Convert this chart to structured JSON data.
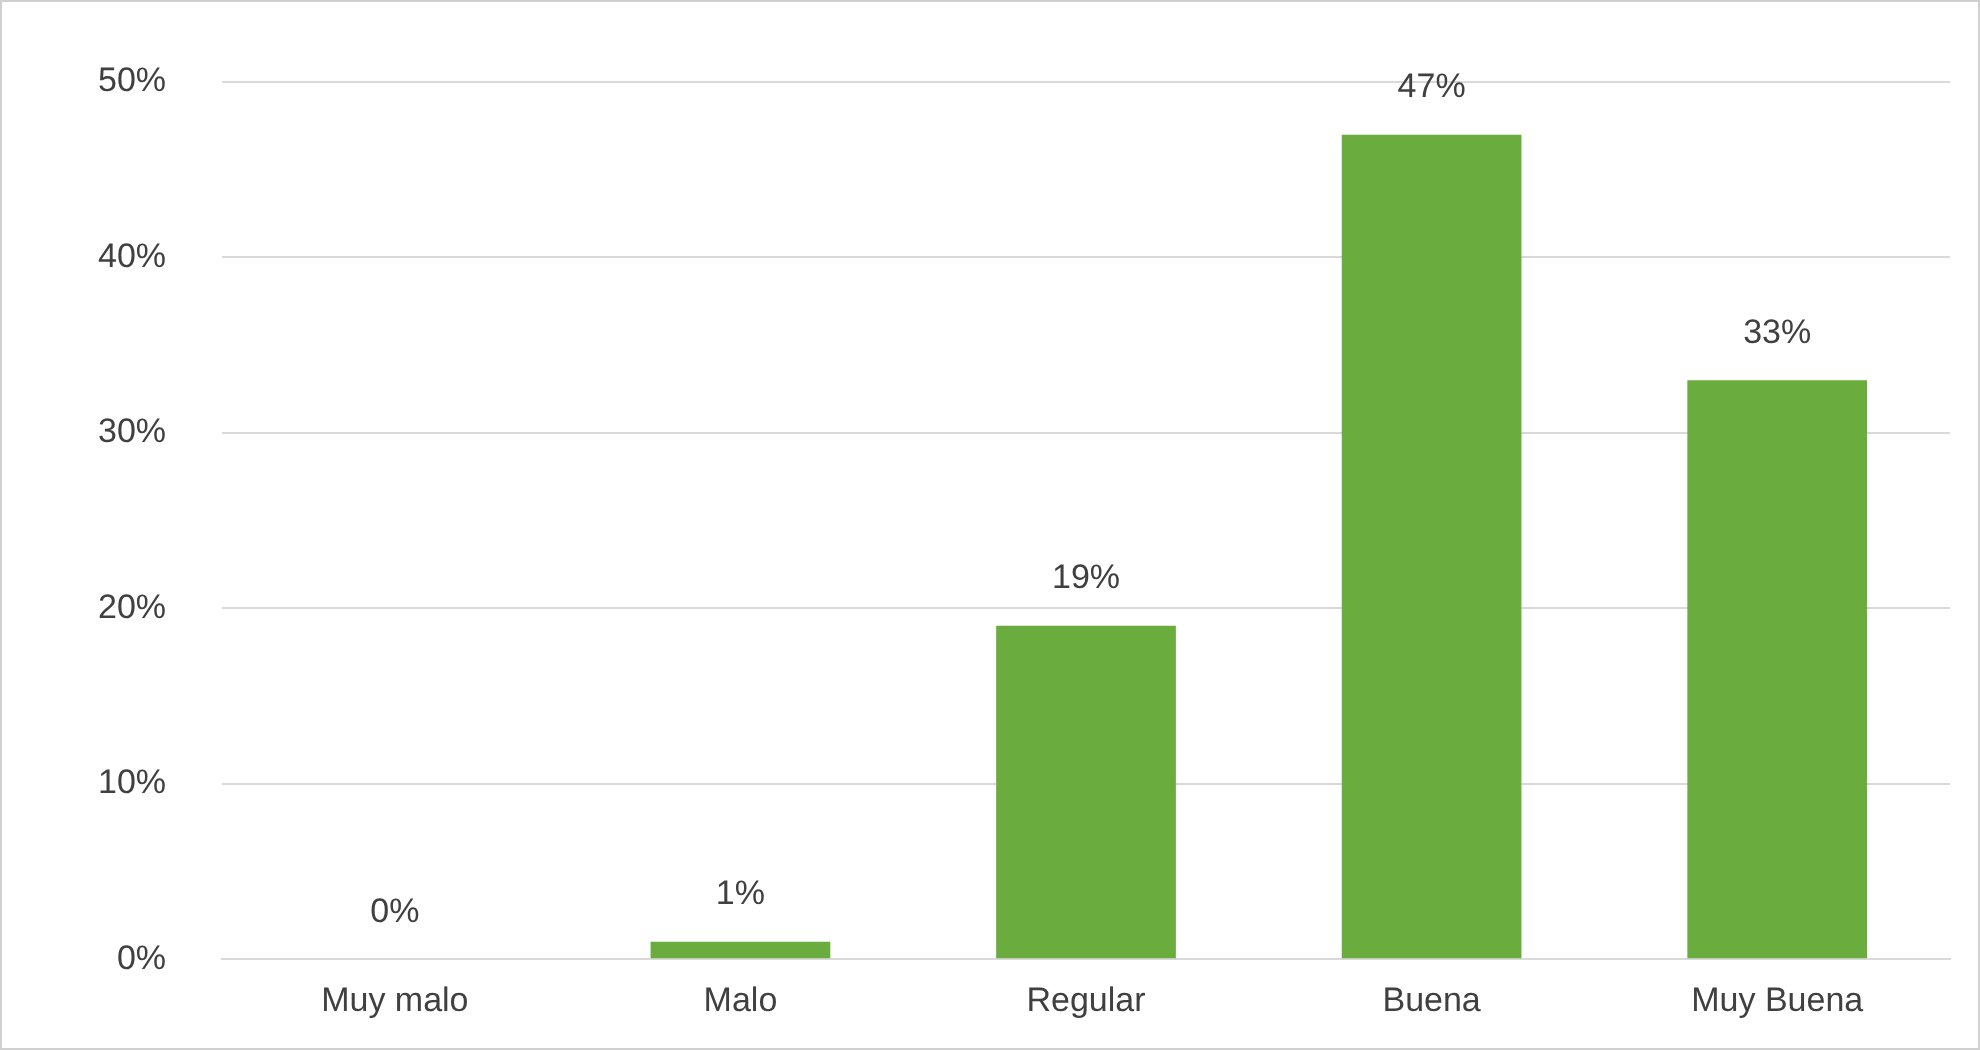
{
  "chart_data": {
    "type": "bar",
    "categories": [
      "Muy malo",
      "Malo",
      "Regular",
      "Buena",
      "Muy Buena"
    ],
    "values": [
      0,
      1,
      19,
      47,
      33
    ],
    "color": "#6aac3e",
    "ylim": [
      0,
      50
    ],
    "yticks": [
      {
        "value": 0,
        "label": "0%"
      },
      {
        "value": 10,
        "label": "10%"
      },
      {
        "value": 20,
        "label": "20%"
      },
      {
        "value": 30,
        "label": "30%"
      },
      {
        "value": 40,
        "label": "40%"
      },
      {
        "value": 50,
        "label": "50%"
      }
    ],
    "grid": "y",
    "legend": false,
    "value_labels": [
      "0%",
      "1%",
      "19%",
      "47%",
      "33%"
    ]
  }
}
